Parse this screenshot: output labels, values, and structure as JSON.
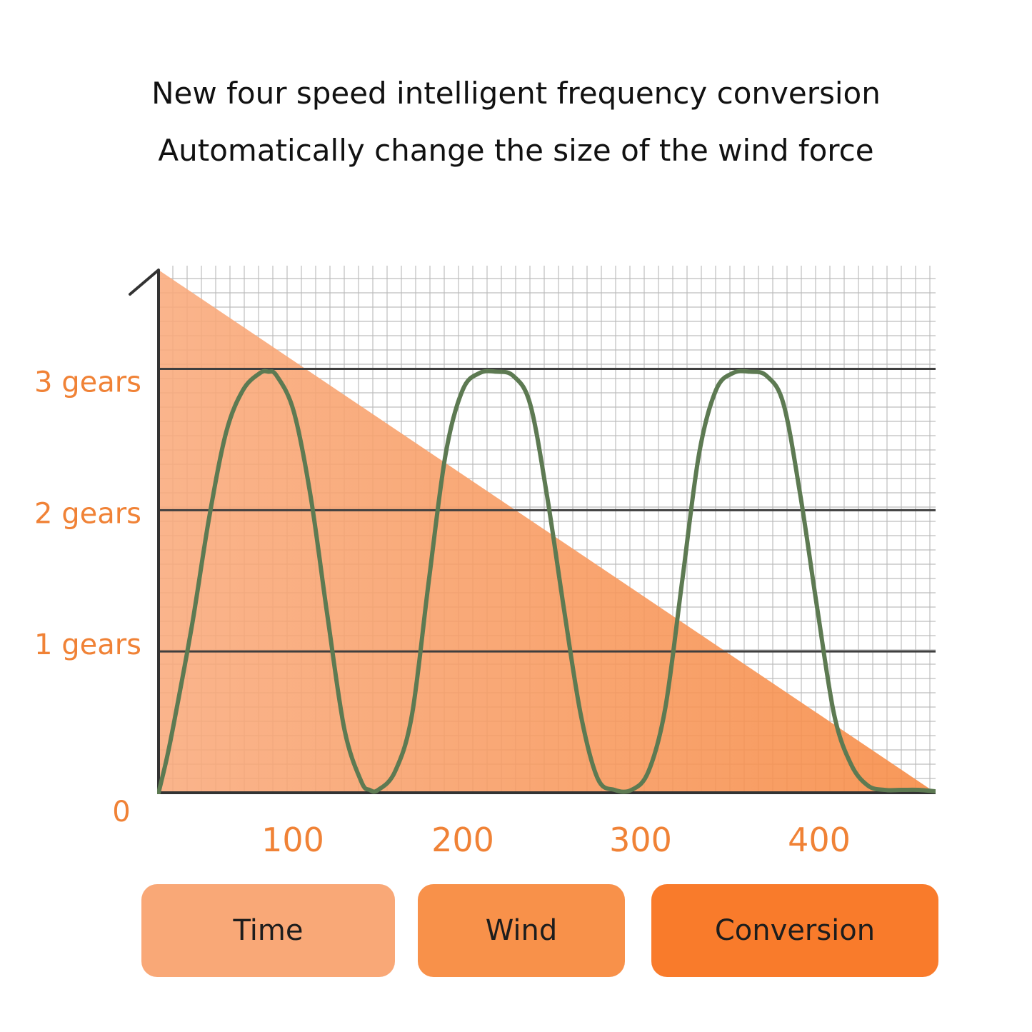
{
  "title_line1": "New four speed intelligent frequency conversion",
  "title_line2": "Automatically change the size of the wind force",
  "chart_data": {
    "type": "line",
    "y_tick_labels": [
      "0",
      "1 gears",
      "2 gears",
      "3 gears"
    ],
    "x_tick_labels": [
      "100",
      "200",
      "300",
      "400"
    ],
    "x_ticks": [
      100,
      200,
      300,
      400
    ],
    "xlim": [
      0,
      460
    ],
    "ylim": [
      0,
      3.7
    ],
    "grid": true,
    "colors": {
      "line": "#5d7a52",
      "area": "#f7924d",
      "label": "#f08236"
    },
    "series": [
      {
        "type": "line",
        "x": [
          0,
          5,
          10,
          20,
          30,
          40,
          50,
          60,
          65,
          70,
          80,
          90,
          100,
          110,
          120,
          125,
          130,
          140,
          150,
          160,
          170,
          180,
          190,
          200,
          210,
          220,
          230,
          240,
          250,
          260,
          270,
          280,
          290,
          300,
          310,
          320,
          330,
          340,
          350,
          360,
          370,
          380,
          390,
          400,
          410,
          420,
          430,
          440,
          450,
          460
        ],
        "y": [
          0,
          0.25,
          0.55,
          1.2,
          1.95,
          2.55,
          2.85,
          2.97,
          2.98,
          2.95,
          2.7,
          2.1,
          1.25,
          0.45,
          0.08,
          0.02,
          0.02,
          0.15,
          0.55,
          1.5,
          2.4,
          2.85,
          2.97,
          2.98,
          2.95,
          2.75,
          2.1,
          1.3,
          0.55,
          0.1,
          0.02,
          0.02,
          0.15,
          0.6,
          1.5,
          2.4,
          2.85,
          2.97,
          2.98,
          2.95,
          2.75,
          2.1,
          1.3,
          0.55,
          0.2,
          0.05,
          0.02,
          0.02,
          0.02,
          0.01
        ]
      },
      {
        "type": "area",
        "x": [
          0,
          460
        ],
        "y": [
          3.7,
          0
        ]
      }
    ]
  },
  "legend": {
    "time": {
      "label": "Time",
      "color": "#f9a877"
    },
    "wind": {
      "label": "Wind",
      "color": "#f8914a"
    },
    "conversion": {
      "label": "Conversion",
      "color": "#f97b2b"
    }
  }
}
